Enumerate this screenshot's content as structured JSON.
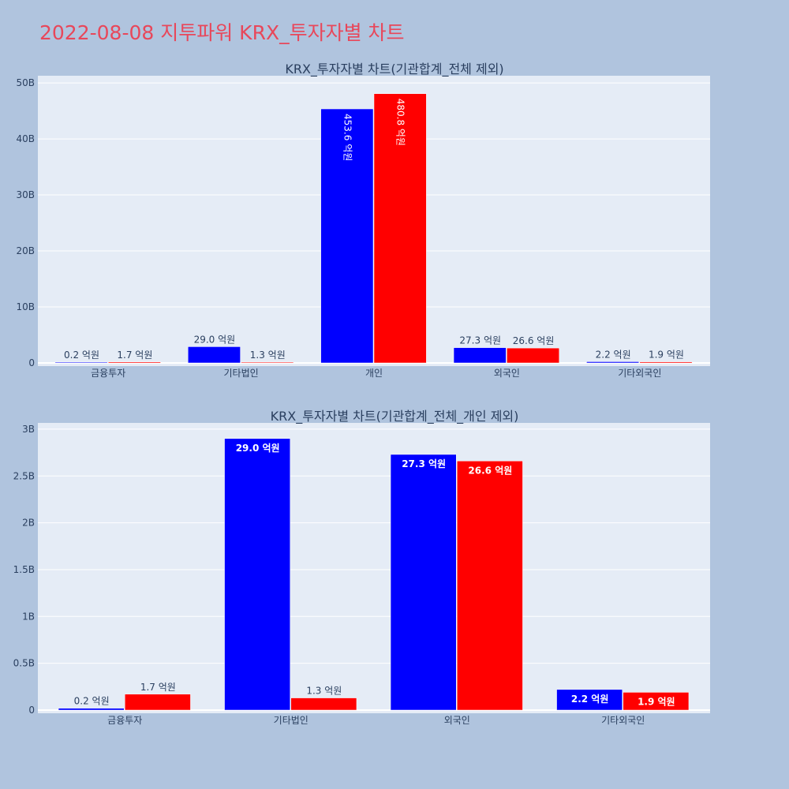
{
  "page": {
    "title": "2022-08-08 지투파워 KRX_투자자별 차트"
  },
  "colors": {
    "background": "#b0c4de",
    "plot_bg": "#e5ecf6",
    "series_blue": "#0000ff",
    "series_red": "#ff0000",
    "title": "#e8475a"
  },
  "chart_data": [
    {
      "type": "bar",
      "title": "KRX_투자자별 차트(기관합계_전체 제외)",
      "categories": [
        "금융투자",
        "기타법인",
        "개인",
        "외국인",
        "기타외국인"
      ],
      "series": [
        {
          "color": "#0000ff",
          "values": [
            20000000,
            2900000000,
            45360000000,
            2730000000,
            220000000
          ],
          "labels": [
            "0.2 억원",
            "29.0 억원",
            "453.6 억원",
            "27.3 억원",
            "2.2 억원"
          ]
        },
        {
          "color": "#ff0000",
          "values": [
            170000000,
            130000000,
            48080000000,
            2660000000,
            190000000
          ],
          "labels": [
            "1.7 억원",
            "1.3 억원",
            "480.8 억원",
            "26.6 억원",
            "1.9 억원"
          ]
        }
      ],
      "ylim": [
        0,
        51000000000
      ],
      "yticks": [
        0,
        10000000000,
        20000000000,
        30000000000,
        40000000000,
        50000000000
      ],
      "ytick_labels": [
        "0",
        "10B",
        "20B",
        "30B",
        "40B",
        "50B"
      ],
      "grid": true
    },
    {
      "type": "bar",
      "title": "KRX_투자자별 차트(기관합계_전체_개인 제외)",
      "categories": [
        "금융투자",
        "기타법인",
        "외국인",
        "기타외국인"
      ],
      "series": [
        {
          "color": "#0000ff",
          "values": [
            20000000,
            2900000000,
            2730000000,
            220000000
          ],
          "labels": [
            "0.2 억원",
            "29.0 억원",
            "27.3 억원",
            "2.2 억원"
          ]
        },
        {
          "color": "#ff0000",
          "values": [
            170000000,
            130000000,
            2660000000,
            190000000
          ],
          "labels": [
            "1.7 억원",
            "1.3 억원",
            "26.6 억원",
            "1.9 억원"
          ]
        }
      ],
      "ylim": [
        0,
        3050000000
      ],
      "yticks": [
        0,
        500000000,
        1000000000,
        1500000000,
        2000000000,
        2500000000,
        3000000000
      ],
      "ytick_labels": [
        "0",
        "0.5B",
        "1B",
        "1.5B",
        "2B",
        "2.5B",
        "3B"
      ],
      "grid": true
    }
  ]
}
